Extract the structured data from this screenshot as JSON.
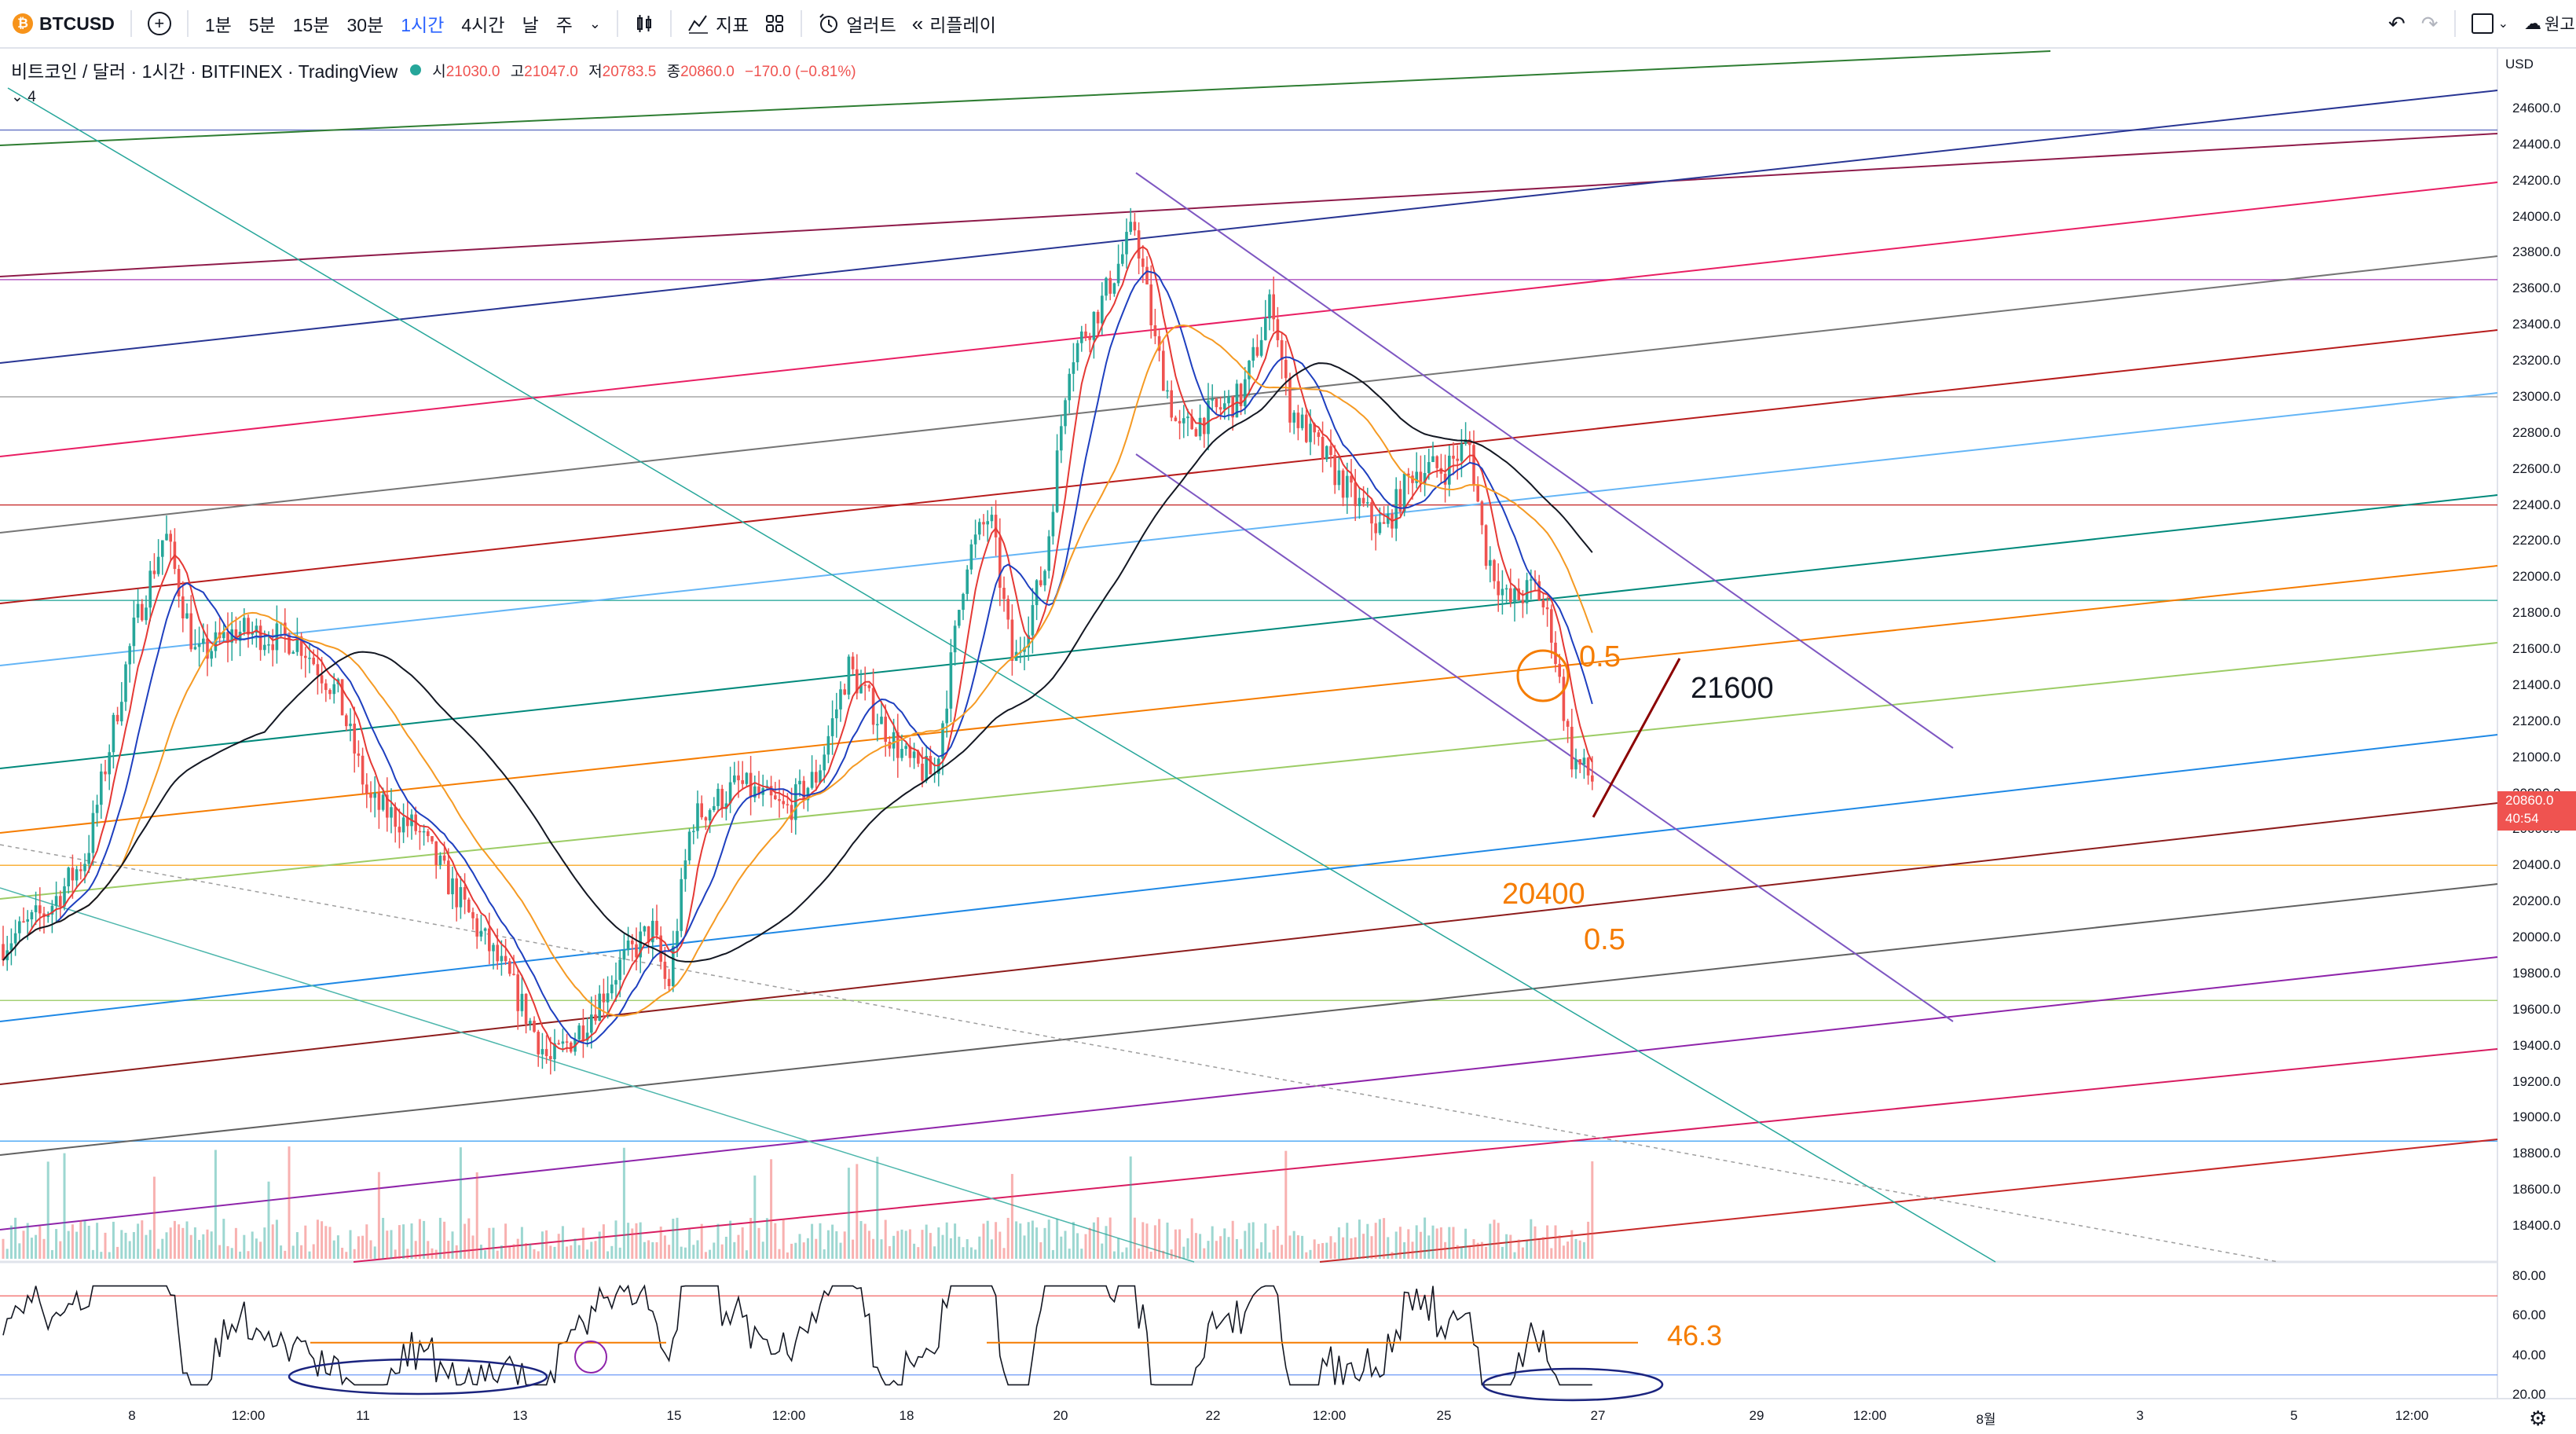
{
  "toolbar": {
    "symbol": "BTCUSD",
    "timeframes": [
      "1분",
      "5분",
      "15분",
      "30분",
      "1시간",
      "4시간",
      "날",
      "주"
    ],
    "active_timeframe": "1시간",
    "indicators_label": "지표",
    "alert_label": "얼러트",
    "replay_label": "리플레이",
    "right_label": "원고"
  },
  "legend": {
    "title": "비트코인 / 달러 · 1시간 · BITFINEX · TradingView",
    "open_label": "시",
    "open": "21030.0",
    "high_label": "고",
    "high": "21047.0",
    "low_label": "저",
    "low": "20783.5",
    "close_label": "종",
    "close": "20860.0",
    "change": "−170.0 (−0.81%)",
    "collapse_count": "4"
  },
  "price_axis": {
    "currency": "USD",
    "ticks": [
      "24600.0",
      "24400.0",
      "24200.0",
      "24000.0",
      "23800.0",
      "23600.0",
      "23400.0",
      "23200.0",
      "23000.0",
      "22800.0",
      "22600.0",
      "22400.0",
      "22200.0",
      "22000.0",
      "21800.0",
      "21600.0",
      "21400.0",
      "21200.0",
      "21000.0",
      "20800.0",
      "20600.0",
      "20400.0",
      "20200.0",
      "20000.0",
      "19800.0",
      "19600.0",
      "19400.0",
      "19200.0",
      "19000.0",
      "18800.0",
      "18600.0",
      "18400.0"
    ],
    "current_price": "20860.0",
    "countdown": "40:54"
  },
  "rsi_axis": {
    "ticks": [
      "80.00",
      "60.00",
      "40.00",
      "20.00"
    ]
  },
  "time_axis": {
    "ticks": [
      "8",
      "12:00",
      "11",
      "13",
      "15",
      "12:00",
      "18",
      "20",
      "22",
      "12:00",
      "25",
      "27",
      "29",
      "12:00",
      "8월",
      "3",
      "5",
      "12:00"
    ]
  },
  "annotations": {
    "fib_upper": "0.5",
    "target": "21600",
    "support": "20400",
    "fib_lower": "0.5",
    "rsi_level": "46.3"
  },
  "colors": {
    "up": "#26a69a",
    "down": "#ef5350",
    "accent": "#2962ff",
    "orange": "#f57c00",
    "purple": "#7e57c2",
    "black": "#131722"
  },
  "chart_data": {
    "type": "candlestick",
    "symbol": "BTCUSD",
    "timeframe": "1시간",
    "ylim": [
      18380,
      24750
    ],
    "close_path": [
      {
        "x": "8",
        "y": 19950
      },
      {
        "x": "8",
        "y": 21700
      },
      {
        "x": "12:00",
        "y": 21500
      },
      {
        "x": "11",
        "y": 20500
      },
      {
        "x": "13",
        "y": 19300
      },
      {
        "x": "15",
        "y": 20100
      },
      {
        "x": "12:00",
        "y": 20700
      },
      {
        "x": "18",
        "y": 21100
      },
      {
        "x": "20",
        "y": 23700
      },
      {
        "x": "22",
        "y": 22700
      },
      {
        "x": "12:00",
        "y": 22600
      },
      {
        "x": "25",
        "y": 22700
      },
      {
        "x": "27",
        "y": 20860
      }
    ],
    "horizontal_levels": [
      24480,
      23650,
      23000,
      22400,
      21870,
      20400,
      19650,
      18870
    ],
    "rsi": {
      "ylim": [
        12,
        84
      ],
      "level": 46.3,
      "bands": [
        70,
        30
      ]
    }
  }
}
